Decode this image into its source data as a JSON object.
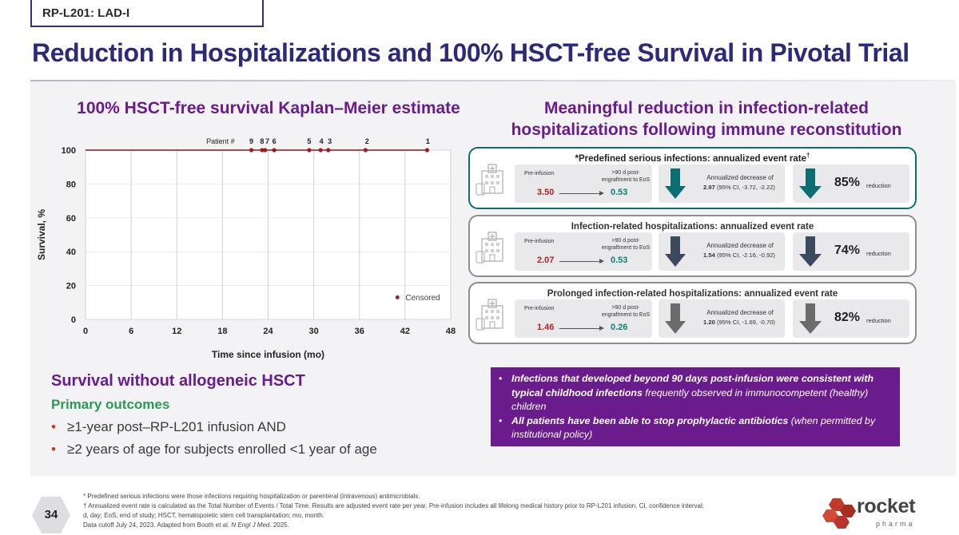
{
  "header": {
    "tag": "RP-L201: LAD-I",
    "title": "Reduction in Hospitalizations and 100% HSCT-free Survival in Pivotal Trial"
  },
  "left": {
    "title": "100% HSCT-free survival Kaplan–Meier estimate",
    "survival_heading": "Survival without allogeneic HSCT",
    "primary_heading": "Primary outcomes",
    "bullets": [
      "≥1-year post–RP-L201 infusion AND",
      "≥2 years of age for subjects enrolled <1 year of age"
    ]
  },
  "chart_data": {
    "type": "line",
    "title": "100% HSCT-free survival Kaplan–Meier estimate",
    "xlabel": "Time since infusion (mo)",
    "ylabel": "Survival, %",
    "xlim": [
      0,
      48
    ],
    "ylim": [
      0,
      100
    ],
    "xticks": [
      0,
      6,
      12,
      18,
      24,
      30,
      36,
      42,
      48
    ],
    "yticks": [
      0,
      20,
      40,
      60,
      80,
      100
    ],
    "series": [
      {
        "name": "HSCT-free survival",
        "x": [
          0,
          45
        ],
        "y": [
          100,
          100
        ]
      }
    ],
    "censored": {
      "label": "Censored",
      "x": [
        21.8,
        23.2,
        23.6,
        24.8,
        29.4,
        30.9,
        31.9,
        36.8,
        44.9
      ],
      "y": [
        100,
        100,
        100,
        100,
        100,
        100,
        100,
        100,
        100
      ]
    },
    "patient_axis_label": "Patient #",
    "patient_labels": [
      {
        "label": "9",
        "x": 21.8
      },
      {
        "label": "8",
        "x": 23.2
      },
      {
        "label": "7",
        "x": 23.9
      },
      {
        "label": "6",
        "x": 24.8
      },
      {
        "label": "5",
        "x": 29.4
      },
      {
        "label": "4",
        "x": 31.0
      },
      {
        "label": "3",
        "x": 32.1
      },
      {
        "label": "2",
        "x": 37.0
      },
      {
        "label": "1",
        "x": 45.0
      }
    ],
    "legend": "Censored",
    "legend_position": "bottom-right",
    "colors": {
      "line": "#8b1a1a",
      "marker": "#9b1c1c",
      "grid": "#d0d0d0"
    }
  },
  "right": {
    "title_line1": "Meaningful reduction in infection-related",
    "title_line2": "hospitalizations following immune reconstitution",
    "cards": [
      {
        "title_prefix": "*",
        "title": "Predefined serious infections: annualized event rate",
        "title_suffix": "†",
        "pre_label": "Pre-infusion",
        "post_label": ">90 d post-engraftment to EoS",
        "pre_value": "3.50",
        "post_value": "0.53",
        "dec_label": "Annualized decrease of",
        "dec_value": "2.97",
        "dec_ci": "(95% CI, -3.72, -2.22)",
        "reduction_pct": "85%",
        "reduction_word": "reduction",
        "arrow_color": "#0a6e72"
      },
      {
        "title_prefix": "",
        "title": "Infection-related hospitalizations: annualized event rate",
        "title_suffix": "",
        "pre_label": "Pre-infusion",
        "post_label": ">90 d post-engraftment to EoS",
        "pre_value": "2.07",
        "post_value": "0.53",
        "dec_label": "Annualized decrease of",
        "dec_value": "1.54",
        "dec_ci": "(95% CI, -2.16, -0.92)",
        "reduction_pct": "74%",
        "reduction_word": "reduction",
        "arrow_color": "#3c4a5e"
      },
      {
        "title_prefix": "",
        "title": "Prolonged infection-related hospitalizations: annualized event rate",
        "title_suffix": "",
        "pre_label": "Pre-infusion",
        "post_label": ">90 d post-engraftment to EoS",
        "pre_value": "1.46",
        "post_value": "0.26",
        "dec_label": "Annualized decrease of",
        "dec_value": "1.20",
        "dec_ci": "(95% CI, -1.69, -0.70)",
        "reduction_pct": "82%",
        "reduction_word": "reduction",
        "arrow_color": "#6b6b6b"
      }
    ],
    "callout": {
      "b1_bold": "Infections that developed beyond 90 days post-infusion were consistent with typical childhood infections",
      "b1_rest": " frequently observed in immunocompetent (healthy) children",
      "b2_bold": "All patients have been able to stop prophylactic antibiotics",
      "b2_rest": " (when permitted by institutional policy)"
    }
  },
  "footer": {
    "page": "34",
    "note1": "* Predefined serious infections were those infections requiring hospitalization or parenteral (intravenous) antimicrobials.",
    "note2": "† Annualized event rate is calculated as the Total Number of Events / Total Time. Results are adjusted event rate per year. Pre-infusion includes all lifelong medical history prior to RP-L201 infusion. CI, confidence interval;",
    "note3": "d, day; EoS, end of study; HSCT, hematopoietic stem cell transplantation; mo, month.",
    "note4_prefix": "Data cutoff July 24, 2023. Adapted from Booth et al.",
    "note4_journal": "N Engl J Med.",
    "note4_year": "2025.",
    "logo_word": "rocket",
    "logo_sub": "pharma"
  },
  "colors": {
    "title": "#2e2a7a",
    "purple": "#6a1b8c",
    "green": "#2a9a56",
    "teal": "#0a6e72"
  }
}
